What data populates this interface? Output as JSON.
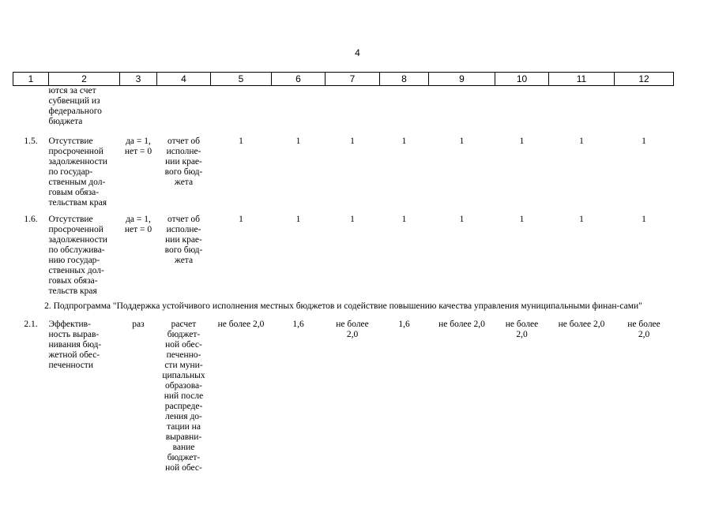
{
  "page_number": "4",
  "header_cols": [
    "1",
    "2",
    "3",
    "4",
    "5",
    "6",
    "7",
    "8",
    "9",
    "10",
    "11",
    "12"
  ],
  "continuation": {
    "name_lines": [
      "ются за счет",
      "субвенций из",
      "федерального",
      "бюджета"
    ]
  },
  "rows": [
    {
      "num": "1.5.",
      "name_lines": [
        "Отсутствие",
        "просроченной",
        "задолженности",
        "по государ-",
        "ственным дол-",
        "говым обяза-",
        "тельствам края"
      ],
      "unit_lines": [
        "да = 1,",
        "нет = 0"
      ],
      "source_lines": [
        "отчет об",
        "исполне-",
        "нии крае-",
        "вого бюд-",
        "жета"
      ],
      "values": [
        "1",
        "1",
        "1",
        "1",
        "1",
        "1",
        "1",
        "1"
      ]
    },
    {
      "num": "1.6.",
      "name_lines": [
        "Отсутствие",
        "просроченной",
        "задолженности",
        "по обслужива-",
        "нию государ-",
        "ственных дол-",
        "говых обяза-",
        "тельств края"
      ],
      "unit_lines": [
        "да = 1,",
        "нет = 0"
      ],
      "source_lines": [
        "отчет об",
        "исполне-",
        "нии крае-",
        "вого бюд-",
        "жета"
      ],
      "values": [
        "1",
        "1",
        "1",
        "1",
        "1",
        "1",
        "1",
        "1"
      ]
    }
  ],
  "section_title": "2. Подпрограмма \"Поддержка устойчивого исполнения местных бюджетов и содействие повышению качества управления муниципальными финан-сами\"",
  "row21": {
    "num": "2.1.",
    "name_lines": [
      "Эффектив-",
      "ность вырав-",
      "нивания бюд-",
      "жетной обес-",
      "печенности"
    ],
    "unit": "раз",
    "source_lines": [
      "расчет",
      "бюджет-",
      "ной обес-",
      "печенно-",
      "сти муни-",
      "ципальных",
      "образова-",
      "ний после",
      "распреде-",
      "ления до-",
      "тации на",
      "выравни-",
      "вание",
      "бюджет-",
      "ной обес-"
    ],
    "values": [
      [
        "не более 2,0"
      ],
      [
        "1,6"
      ],
      [
        "не более",
        "2,0"
      ],
      [
        "1,6"
      ],
      [
        "не более 2,0"
      ],
      [
        "не более",
        "2,0"
      ],
      [
        "не более 2,0"
      ],
      [
        "не более",
        "2,0"
      ]
    ]
  }
}
